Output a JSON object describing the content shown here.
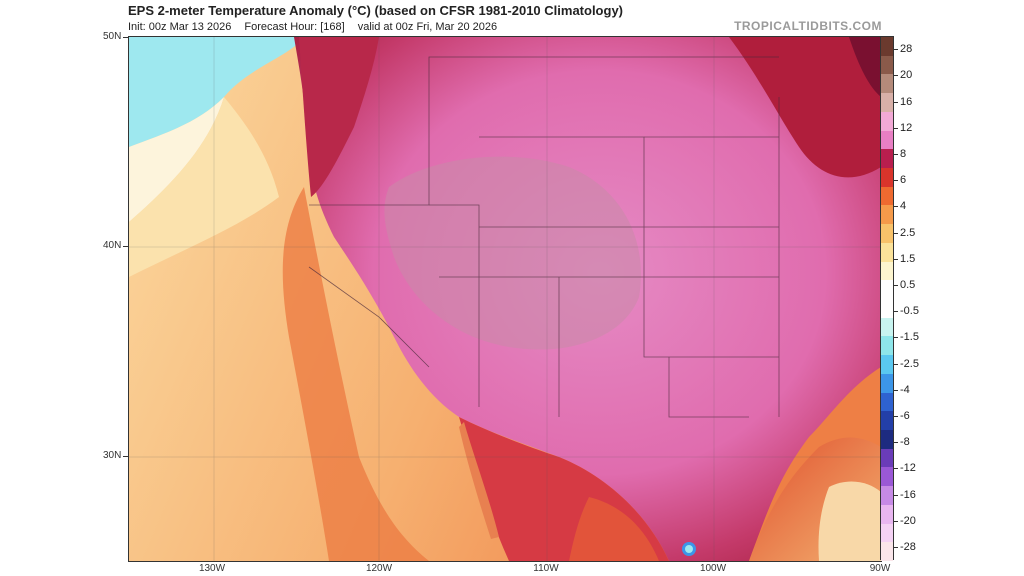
{
  "header": {
    "title": "EPS 2-meter Temperature Anomaly (°C) (based on CFSR 1981-2010 Climatology)",
    "init": "Init: 00z Mar 13 2026",
    "forecast_hour": "Forecast Hour: [168]",
    "valid": "valid at 00z Fri, Mar 20 2026",
    "brand": "TROPICALTIDBITS.COM"
  },
  "axes": {
    "lat_labels": [
      "50N",
      "40N",
      "30N"
    ],
    "lon_labels": [
      "130W",
      "120W",
      "110W",
      "100W",
      "90W"
    ]
  },
  "colorbar": {
    "labels": [
      "28",
      "20",
      "16",
      "12",
      "8",
      "6",
      "4",
      "2.5",
      "1.5",
      "0.5",
      "-0.5",
      "-1.5",
      "-2.5",
      "-4",
      "-6",
      "-8",
      "-12",
      "-16",
      "-20",
      "-28"
    ],
    "colors": [
      "#6b3a2e",
      "#8a5a4a",
      "#b48a7a",
      "#d8b0a8",
      "#f2a9d6",
      "#e87fc4",
      "#b81e4e",
      "#d9342b",
      "#ee6a30",
      "#f59a4a",
      "#f8c26a",
      "#fbe29a",
      "#fdf5cf",
      "#ffffff",
      "#ffffff",
      "#c8f4f0",
      "#8ee6ea",
      "#5ac8f0",
      "#3c96e8",
      "#2e62d0",
      "#233fa8",
      "#1d2b80",
      "#6a3cb8",
      "#9a58d6",
      "#c68ae6",
      "#e8b6f0",
      "#f4d2f4",
      "#fae6ea"
    ]
  },
  "map": {
    "regions": [
      "ocean-west",
      "western-us",
      "plains",
      "gulf-coast",
      "mexico"
    ]
  }
}
